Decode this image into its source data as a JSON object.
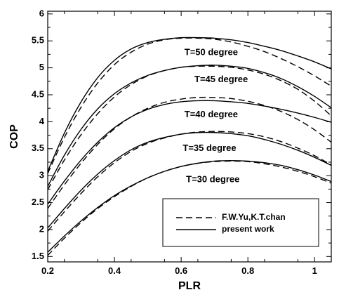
{
  "chart_data": {
    "type": "line",
    "title": "",
    "xlabel": "PLR",
    "ylabel": "COP",
    "xlim": [
      0.2,
      1.05
    ],
    "ylim": [
      1.4,
      6.05
    ],
    "xticks": [
      0.2,
      0.4,
      0.6,
      0.8,
      1
    ],
    "xtick_labels": [
      "0.2",
      "0.4",
      "0.6",
      "0.8",
      "1"
    ],
    "yticks": [
      1.5,
      2,
      2.5,
      3,
      3.5,
      4,
      4.5,
      5,
      5.5,
      6
    ],
    "ytick_labels": [
      "1.5",
      "2",
      "2.5",
      "3",
      "3.5",
      "4",
      "4.5",
      "5",
      "5.5",
      "6"
    ],
    "grid": false,
    "legend": {
      "position": "bottom-right",
      "entries": [
        {
          "label": "F.W.Yu,K.T.chan",
          "style": "dashed"
        },
        {
          "label": "present work",
          "style": "solid"
        }
      ]
    },
    "curve_labels": [
      {
        "text": "T=50 degree",
        "x": 0.69,
        "y": 5.28
      },
      {
        "text": "T=45 degree",
        "x": 0.72,
        "y": 4.78
      },
      {
        "text": "T=40 degree",
        "x": 0.69,
        "y": 4.13
      },
      {
        "text": "T=35 degree",
        "x": 0.685,
        "y": 3.5
      },
      {
        "text": "T=30 degree",
        "x": 0.695,
        "y": 2.92
      }
    ],
    "groups": [
      {
        "temperature": "T=50 degree",
        "present_work": {
          "x": [
            0.2,
            0.25,
            0.3,
            0.35,
            0.4,
            0.45,
            0.5,
            0.55,
            0.6,
            0.65,
            0.7,
            0.75,
            0.8,
            0.85,
            0.9,
            0.95,
            1.0,
            1.05
          ],
          "y": [
            3.08,
            3.79,
            4.37,
            4.82,
            5.14,
            5.35,
            5.47,
            5.53,
            5.56,
            5.56,
            5.55,
            5.52,
            5.47,
            5.4,
            5.32,
            5.22,
            5.11,
            4.98
          ]
        },
        "yu_chan": {
          "x": [
            0.2,
            0.25,
            0.3,
            0.35,
            0.4,
            0.45,
            0.5,
            0.55,
            0.6,
            0.65,
            0.7,
            0.75,
            0.8,
            0.85,
            0.9,
            0.95,
            1.0,
            1.05
          ],
          "y": [
            3.04,
            3.71,
            4.27,
            4.72,
            5.06,
            5.29,
            5.44,
            5.52,
            5.55,
            5.55,
            5.53,
            5.48,
            5.4,
            5.3,
            5.17,
            5.02,
            4.85,
            4.66
          ]
        }
      },
      {
        "temperature": "T=45 degree",
        "present_work": {
          "x": [
            0.2,
            0.25,
            0.3,
            0.35,
            0.4,
            0.45,
            0.5,
            0.55,
            0.6,
            0.65,
            0.7,
            0.75,
            0.8,
            0.85,
            0.9,
            0.95,
            1.0,
            1.05
          ],
          "y": [
            2.8,
            3.38,
            3.86,
            4.24,
            4.52,
            4.72,
            4.86,
            4.95,
            5.01,
            5.04,
            5.05,
            5.03,
            4.99,
            4.91,
            4.8,
            4.65,
            4.47,
            4.26
          ]
        },
        "yu_chan": {
          "x": [
            0.2,
            0.25,
            0.3,
            0.35,
            0.4,
            0.45,
            0.5,
            0.55,
            0.6,
            0.65,
            0.7,
            0.75,
            0.8,
            0.85,
            0.9,
            0.95,
            1.0,
            1.05
          ],
          "y": [
            2.74,
            3.29,
            3.76,
            4.15,
            4.46,
            4.69,
            4.85,
            4.95,
            5.01,
            5.03,
            5.03,
            5.01,
            4.96,
            4.88,
            4.76,
            4.6,
            4.38,
            4.11
          ]
        }
      },
      {
        "temperature": "T=40 degree",
        "present_work": {
          "x": [
            0.2,
            0.25,
            0.3,
            0.35,
            0.4,
            0.45,
            0.5,
            0.55,
            0.6,
            0.65,
            0.7,
            0.75,
            0.8,
            0.85,
            0.9,
            0.95,
            1.0,
            1.05
          ],
          "y": [
            2.47,
            2.9,
            3.29,
            3.62,
            3.89,
            4.09,
            4.23,
            4.32,
            4.37,
            4.39,
            4.39,
            4.37,
            4.34,
            4.29,
            4.23,
            4.16,
            4.08,
            3.99
          ]
        },
        "yu_chan": {
          "x": [
            0.2,
            0.25,
            0.3,
            0.35,
            0.4,
            0.45,
            0.5,
            0.55,
            0.6,
            0.65,
            0.7,
            0.75,
            0.8,
            0.85,
            0.9,
            0.95,
            1.0,
            1.05
          ],
          "y": [
            2.39,
            2.83,
            3.23,
            3.58,
            3.87,
            4.09,
            4.25,
            4.36,
            4.42,
            4.45,
            4.45,
            4.43,
            4.38,
            4.3,
            4.19,
            4.04,
            3.85,
            3.62
          ]
        }
      },
      {
        "temperature": "T=35 degree",
        "present_work": {
          "x": [
            0.2,
            0.25,
            0.3,
            0.35,
            0.4,
            0.45,
            0.5,
            0.55,
            0.6,
            0.65,
            0.7,
            0.75,
            0.8,
            0.85,
            0.9,
            0.95,
            1.0,
            1.05
          ],
          "y": [
            2.03,
            2.39,
            2.73,
            3.03,
            3.28,
            3.48,
            3.62,
            3.71,
            3.77,
            3.8,
            3.8,
            3.78,
            3.74,
            3.67,
            3.58,
            3.47,
            3.34,
            3.19
          ]
        },
        "yu_chan": {
          "x": [
            0.2,
            0.25,
            0.3,
            0.35,
            0.4,
            0.45,
            0.5,
            0.55,
            0.6,
            0.65,
            0.7,
            0.75,
            0.8,
            0.85,
            0.9,
            0.95,
            1.0,
            1.05
          ],
          "y": [
            1.97,
            2.33,
            2.67,
            2.98,
            3.24,
            3.45,
            3.6,
            3.7,
            3.77,
            3.81,
            3.82,
            3.81,
            3.78,
            3.72,
            3.63,
            3.51,
            3.37,
            3.2
          ]
        }
      },
      {
        "temperature": "T=30 degree",
        "present_work": {
          "x": [
            0.2,
            0.25,
            0.3,
            0.35,
            0.4,
            0.45,
            0.5,
            0.55,
            0.6,
            0.65,
            0.7,
            0.75,
            0.8,
            0.85,
            0.9,
            0.95,
            1.0,
            1.05
          ],
          "y": [
            1.58,
            1.88,
            2.16,
            2.41,
            2.63,
            2.81,
            2.96,
            3.08,
            3.17,
            3.23,
            3.27,
            3.28,
            3.27,
            3.24,
            3.19,
            3.11,
            3.01,
            2.89
          ]
        },
        "yu_chan": {
          "x": [
            0.2,
            0.25,
            0.3,
            0.35,
            0.4,
            0.45,
            0.5,
            0.55,
            0.6,
            0.65,
            0.7,
            0.75,
            0.8,
            0.85,
            0.9,
            0.95,
            1.0,
            1.05
          ],
          "y": [
            1.52,
            1.84,
            2.13,
            2.39,
            2.61,
            2.8,
            2.96,
            3.08,
            3.17,
            3.23,
            3.26,
            3.27,
            3.26,
            3.22,
            3.16,
            3.08,
            2.98,
            2.86
          ]
        }
      }
    ]
  }
}
